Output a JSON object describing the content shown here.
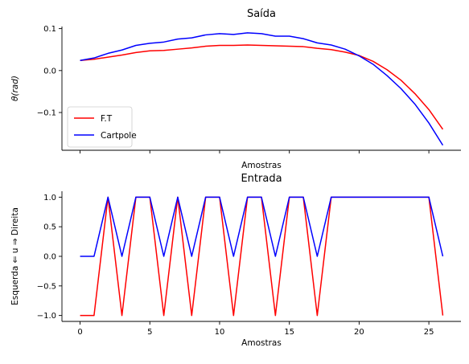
{
  "chart_data": [
    {
      "type": "line",
      "title": "Saída",
      "xlabel": "Amostras",
      "ylabel": "θ(rad)",
      "xlim": [
        -1.3,
        27.3
      ],
      "ylim": [
        -0.19,
        0.105
      ],
      "x_ticks": [
        0,
        5,
        10,
        15,
        20,
        25
      ],
      "x_tick_labels_visible": false,
      "y_ticks": [
        0.1,
        0.0,
        -0.1
      ],
      "y_tick_labels": [
        "0.1",
        "0.0",
        "−0.1"
      ],
      "legend": {
        "placement": "lower-left"
      },
      "x": [
        0,
        1,
        2,
        3,
        4,
        5,
        6,
        7,
        8,
        9,
        10,
        11,
        12,
        13,
        14,
        15,
        16,
        17,
        18,
        19,
        20,
        21,
        22,
        23,
        24,
        25,
        26
      ],
      "series": [
        {
          "name": "F.T",
          "color": "#ff0000",
          "values": [
            0.024,
            0.027,
            0.032,
            0.037,
            0.043,
            0.047,
            0.048,
            0.051,
            0.054,
            0.058,
            0.06,
            0.06,
            0.061,
            0.06,
            0.059,
            0.058,
            0.057,
            0.053,
            0.05,
            0.044,
            0.036,
            0.022,
            0.002,
            -0.023,
            -0.055,
            -0.093,
            -0.14
          ]
        },
        {
          "name": "Cartpole",
          "color": "#0000ff",
          "values": [
            0.024,
            0.03,
            0.041,
            0.049,
            0.06,
            0.065,
            0.068,
            0.075,
            0.078,
            0.085,
            0.088,
            0.086,
            0.09,
            0.088,
            0.082,
            0.082,
            0.076,
            0.066,
            0.061,
            0.051,
            0.035,
            0.015,
            -0.012,
            -0.043,
            -0.08,
            -0.125,
            -0.178
          ]
        }
      ]
    },
    {
      "type": "line",
      "title": "Entrada",
      "xlabel": "Amostras",
      "ylabel": "Esquerda ⇐ u ⇒ Direita",
      "xlim": [
        -1.3,
        27.3
      ],
      "ylim": [
        -1.1,
        1.1
      ],
      "x_ticks": [
        0,
        5,
        10,
        15,
        20,
        25
      ],
      "x_tick_labels": [
        "0",
        "5",
        "10",
        "15",
        "20",
        "25"
      ],
      "y_ticks": [
        1.0,
        0.5,
        0.0,
        -0.5,
        -1.0
      ],
      "y_tick_labels": [
        "1.0",
        "0.5",
        "0.0",
        "−0.5",
        "−1.0"
      ],
      "x": [
        0,
        1,
        2,
        3,
        4,
        5,
        6,
        7,
        8,
        9,
        10,
        11,
        12,
        13,
        14,
        15,
        16,
        17,
        18,
        19,
        20,
        21,
        22,
        23,
        24,
        25,
        26
      ],
      "series": [
        {
          "color": "#ff0000",
          "values": [
            -1,
            -1,
            1,
            -1,
            1,
            1,
            -1,
            1,
            -1,
            1,
            1,
            -1,
            1,
            1,
            -1,
            1,
            1,
            -1,
            1,
            1,
            1,
            1,
            1,
            1,
            1,
            1,
            -1
          ]
        },
        {
          "color": "#0000ff",
          "values": [
            0,
            0,
            1,
            0,
            1,
            1,
            0,
            1,
            0,
            1,
            1,
            0,
            1,
            1,
            0,
            1,
            1,
            0,
            1,
            1,
            1,
            1,
            1,
            1,
            1,
            1,
            0
          ]
        }
      ]
    }
  ]
}
